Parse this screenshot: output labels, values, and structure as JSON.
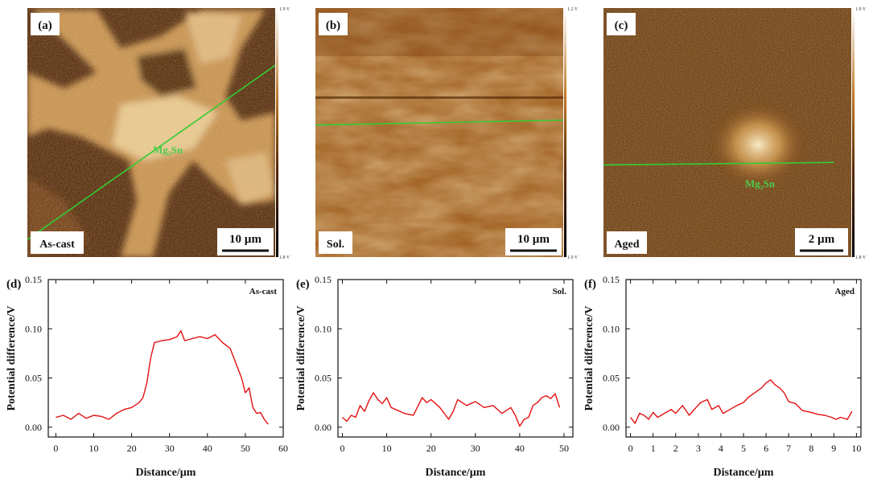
{
  "maps": [
    {
      "panel_label": "(a)",
      "sample_label": "As-cast",
      "scale_bar": "10 µm",
      "colorbar_max": "1.9 V",
      "colorbar_min": "1.8 V",
      "phase_label": "Mg₂Sn",
      "scan_line": [
        [
          0.0,
          0.93
        ],
        [
          1.0,
          0.23
        ]
      ]
    },
    {
      "panel_label": "(b)",
      "sample_label": "Sol.",
      "scale_bar": "10 µm",
      "colorbar_max": "1.2 V",
      "colorbar_min": "1.0 V",
      "phase_label": "",
      "scan_line": [
        [
          0.0,
          0.47
        ],
        [
          1.0,
          0.45
        ]
      ]
    },
    {
      "panel_label": "(c)",
      "sample_label": "Aged",
      "scale_bar": "2 µm",
      "colorbar_max": "1.9 V",
      "colorbar_min": "1.8 V",
      "phase_label": "Mg₂Sn",
      "scan_line": [
        [
          0.0,
          0.63
        ],
        [
          0.93,
          0.62
        ]
      ]
    }
  ],
  "colors": {
    "map_dark": "#3a1800",
    "map_mid": "#a45c14",
    "map_light": "#f0dcaa",
    "scan_line": "#33cc33",
    "profile_line": "#e31010"
  },
  "chart_data": [
    {
      "type": "line",
      "panel_label": "(d)",
      "legend": "As-cast",
      "xlabel": "Distance/µm",
      "ylabel": "Potential difference/V",
      "xlim": [
        -2,
        60
      ],
      "ylim": [
        -0.01,
        0.15
      ],
      "xticks": [
        0,
        10,
        20,
        30,
        40,
        50,
        60
      ],
      "yticks": [
        "0.00",
        "0.05",
        "0.10",
        "0.15"
      ],
      "x": [
        0,
        2,
        4,
        6,
        8,
        10,
        12,
        14,
        16,
        18,
        20,
        22,
        23,
        24,
        25,
        26,
        28,
        30,
        32,
        33,
        34,
        36,
        38,
        40,
        42,
        43,
        44,
        46,
        47,
        48,
        49,
        50,
        51,
        52,
        53,
        54,
        55,
        56
      ],
      "y": [
        0.01,
        0.012,
        0.008,
        0.014,
        0.009,
        0.012,
        0.011,
        0.008,
        0.014,
        0.018,
        0.02,
        0.025,
        0.03,
        0.045,
        0.07,
        0.086,
        0.088,
        0.089,
        0.092,
        0.098,
        0.088,
        0.09,
        0.092,
        0.09,
        0.094,
        0.09,
        0.086,
        0.08,
        0.07,
        0.06,
        0.05,
        0.035,
        0.04,
        0.02,
        0.014,
        0.015,
        0.008,
        0.003
      ]
    },
    {
      "type": "line",
      "panel_label": "(e)",
      "legend": "Sol.",
      "xlabel": "Distance/µm",
      "ylabel": "Potential difference/V",
      "xlim": [
        -1,
        52
      ],
      "ylim": [
        -0.01,
        0.15
      ],
      "xticks": [
        0,
        10,
        20,
        30,
        40,
        50
      ],
      "yticks": [
        "0.00",
        "0.05",
        "0.10",
        "0.15"
      ],
      "x": [
        0,
        1,
        2,
        3,
        4,
        5,
        6,
        7,
        8,
        9,
        10,
        11,
        12,
        14,
        16,
        18,
        19,
        20,
        22,
        24,
        25,
        26,
        27,
        28,
        30,
        32,
        34,
        36,
        38,
        39,
        40,
        41,
        42,
        43,
        44,
        45,
        46,
        47,
        48,
        49
      ],
      "y": [
        0.01,
        0.006,
        0.012,
        0.01,
        0.022,
        0.016,
        0.027,
        0.035,
        0.028,
        0.024,
        0.03,
        0.02,
        0.018,
        0.014,
        0.012,
        0.03,
        0.025,
        0.028,
        0.02,
        0.008,
        0.016,
        0.028,
        0.025,
        0.022,
        0.026,
        0.02,
        0.022,
        0.014,
        0.02,
        0.012,
        0.001,
        0.008,
        0.01,
        0.022,
        0.025,
        0.03,
        0.032,
        0.029,
        0.034,
        0.02
      ]
    },
    {
      "type": "line",
      "panel_label": "(f)",
      "legend": "Aged",
      "xlabel": "Distance/µm",
      "ylabel": "Potential difference/V",
      "xlim": [
        -0.2,
        10.2
      ],
      "ylim": [
        -0.01,
        0.15
      ],
      "xticks": [
        0,
        1,
        2,
        3,
        4,
        5,
        6,
        7,
        8,
        9,
        10
      ],
      "yticks": [
        "0.00",
        "0.05",
        "0.10",
        "0.15"
      ],
      "x": [
        0,
        0.2,
        0.4,
        0.6,
        0.8,
        1.0,
        1.2,
        1.5,
        1.8,
        2.0,
        2.3,
        2.6,
        2.9,
        3.1,
        3.4,
        3.6,
        3.9,
        4.1,
        4.4,
        4.7,
        5.0,
        5.2,
        5.5,
        5.8,
        6.0,
        6.2,
        6.4,
        6.6,
        6.8,
        7.0,
        7.3,
        7.6,
        8.0,
        8.3,
        8.6,
        8.9,
        9.1,
        9.3,
        9.6,
        9.8
      ],
      "y": [
        0.01,
        0.004,
        0.014,
        0.012,
        0.008,
        0.015,
        0.01,
        0.014,
        0.018,
        0.014,
        0.022,
        0.012,
        0.02,
        0.025,
        0.028,
        0.018,
        0.022,
        0.014,
        0.018,
        0.022,
        0.025,
        0.03,
        0.035,
        0.04,
        0.045,
        0.048,
        0.043,
        0.04,
        0.035,
        0.026,
        0.024,
        0.017,
        0.015,
        0.013,
        0.012,
        0.01,
        0.008,
        0.01,
        0.008,
        0.016
      ]
    }
  ]
}
